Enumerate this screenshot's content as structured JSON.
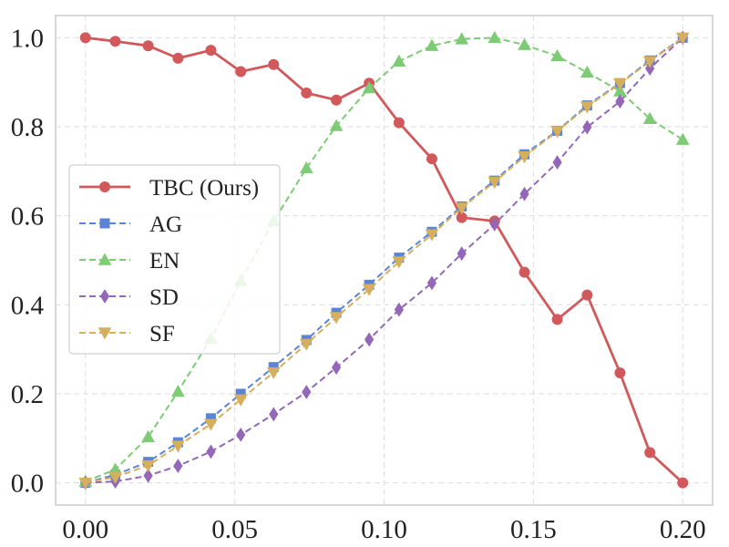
{
  "chart_data": {
    "type": "line",
    "title": "",
    "xlabel": "",
    "ylabel": "",
    "xlim": [
      -0.01,
      0.21
    ],
    "ylim": [
      -0.05,
      1.05
    ],
    "x_ticks": [
      0.0,
      0.05,
      0.1,
      0.15,
      0.2
    ],
    "x_tick_labels": [
      "0.00",
      "0.05",
      "0.10",
      "0.15",
      "0.20"
    ],
    "y_ticks": [
      0.0,
      0.2,
      0.4,
      0.6,
      0.8,
      1.0
    ],
    "y_tick_labels": [
      "0.0",
      "0.2",
      "0.4",
      "0.6",
      "0.8",
      "1.0"
    ],
    "grid": true,
    "legend_position": "center-left",
    "x": [
      0.0,
      0.01,
      0.021,
      0.031,
      0.042,
      0.052,
      0.063,
      0.074,
      0.084,
      0.095,
      0.105,
      0.116,
      0.126,
      0.137,
      0.147,
      0.158,
      0.168,
      0.179,
      0.189,
      0.2
    ],
    "series": [
      {
        "name": "TBC (Ours)",
        "color": "#d1595b",
        "marker": "circle",
        "line_style": "solid",
        "values": [
          1.0,
          0.992,
          0.982,
          0.954,
          0.972,
          0.924,
          0.94,
          0.876,
          0.86,
          0.898,
          0.809,
          0.728,
          0.596,
          0.588,
          0.473,
          0.367,
          0.422,
          0.247,
          0.068,
          0.0
        ]
      },
      {
        "name": "AG",
        "color": "#5b84d4",
        "marker": "square",
        "line_style": "dashed",
        "values": [
          0.0,
          0.018,
          0.047,
          0.091,
          0.145,
          0.2,
          0.26,
          0.321,
          0.382,
          0.445,
          0.506,
          0.564,
          0.621,
          0.679,
          0.738,
          0.791,
          0.848,
          0.898,
          0.949,
          1.0
        ]
      },
      {
        "name": "EN",
        "color": "#7dcb74",
        "marker": "triangle-up",
        "line_style": "dashed",
        "values": [
          0.003,
          0.03,
          0.103,
          0.205,
          0.324,
          0.454,
          0.588,
          0.707,
          0.802,
          0.887,
          0.947,
          0.982,
          0.997,
          1.0,
          0.984,
          0.959,
          0.922,
          0.88,
          0.818,
          0.771
        ]
      },
      {
        "name": "SD",
        "color": "#9467b8",
        "marker": "diamond",
        "line_style": "dashed",
        "values": [
          0.0,
          0.003,
          0.016,
          0.038,
          0.07,
          0.108,
          0.154,
          0.204,
          0.259,
          0.322,
          0.389,
          0.449,
          0.515,
          0.581,
          0.649,
          0.72,
          0.799,
          0.857,
          0.931,
          1.0
        ]
      },
      {
        "name": "SF",
        "color": "#d6af5e",
        "marker": "triangle-down",
        "line_style": "dashed",
        "values": [
          0.0,
          0.013,
          0.039,
          0.083,
          0.132,
          0.187,
          0.248,
          0.312,
          0.372,
          0.435,
          0.497,
          0.558,
          0.618,
          0.676,
          0.733,
          0.79,
          0.845,
          0.897,
          0.947,
          1.0
        ]
      }
    ]
  }
}
